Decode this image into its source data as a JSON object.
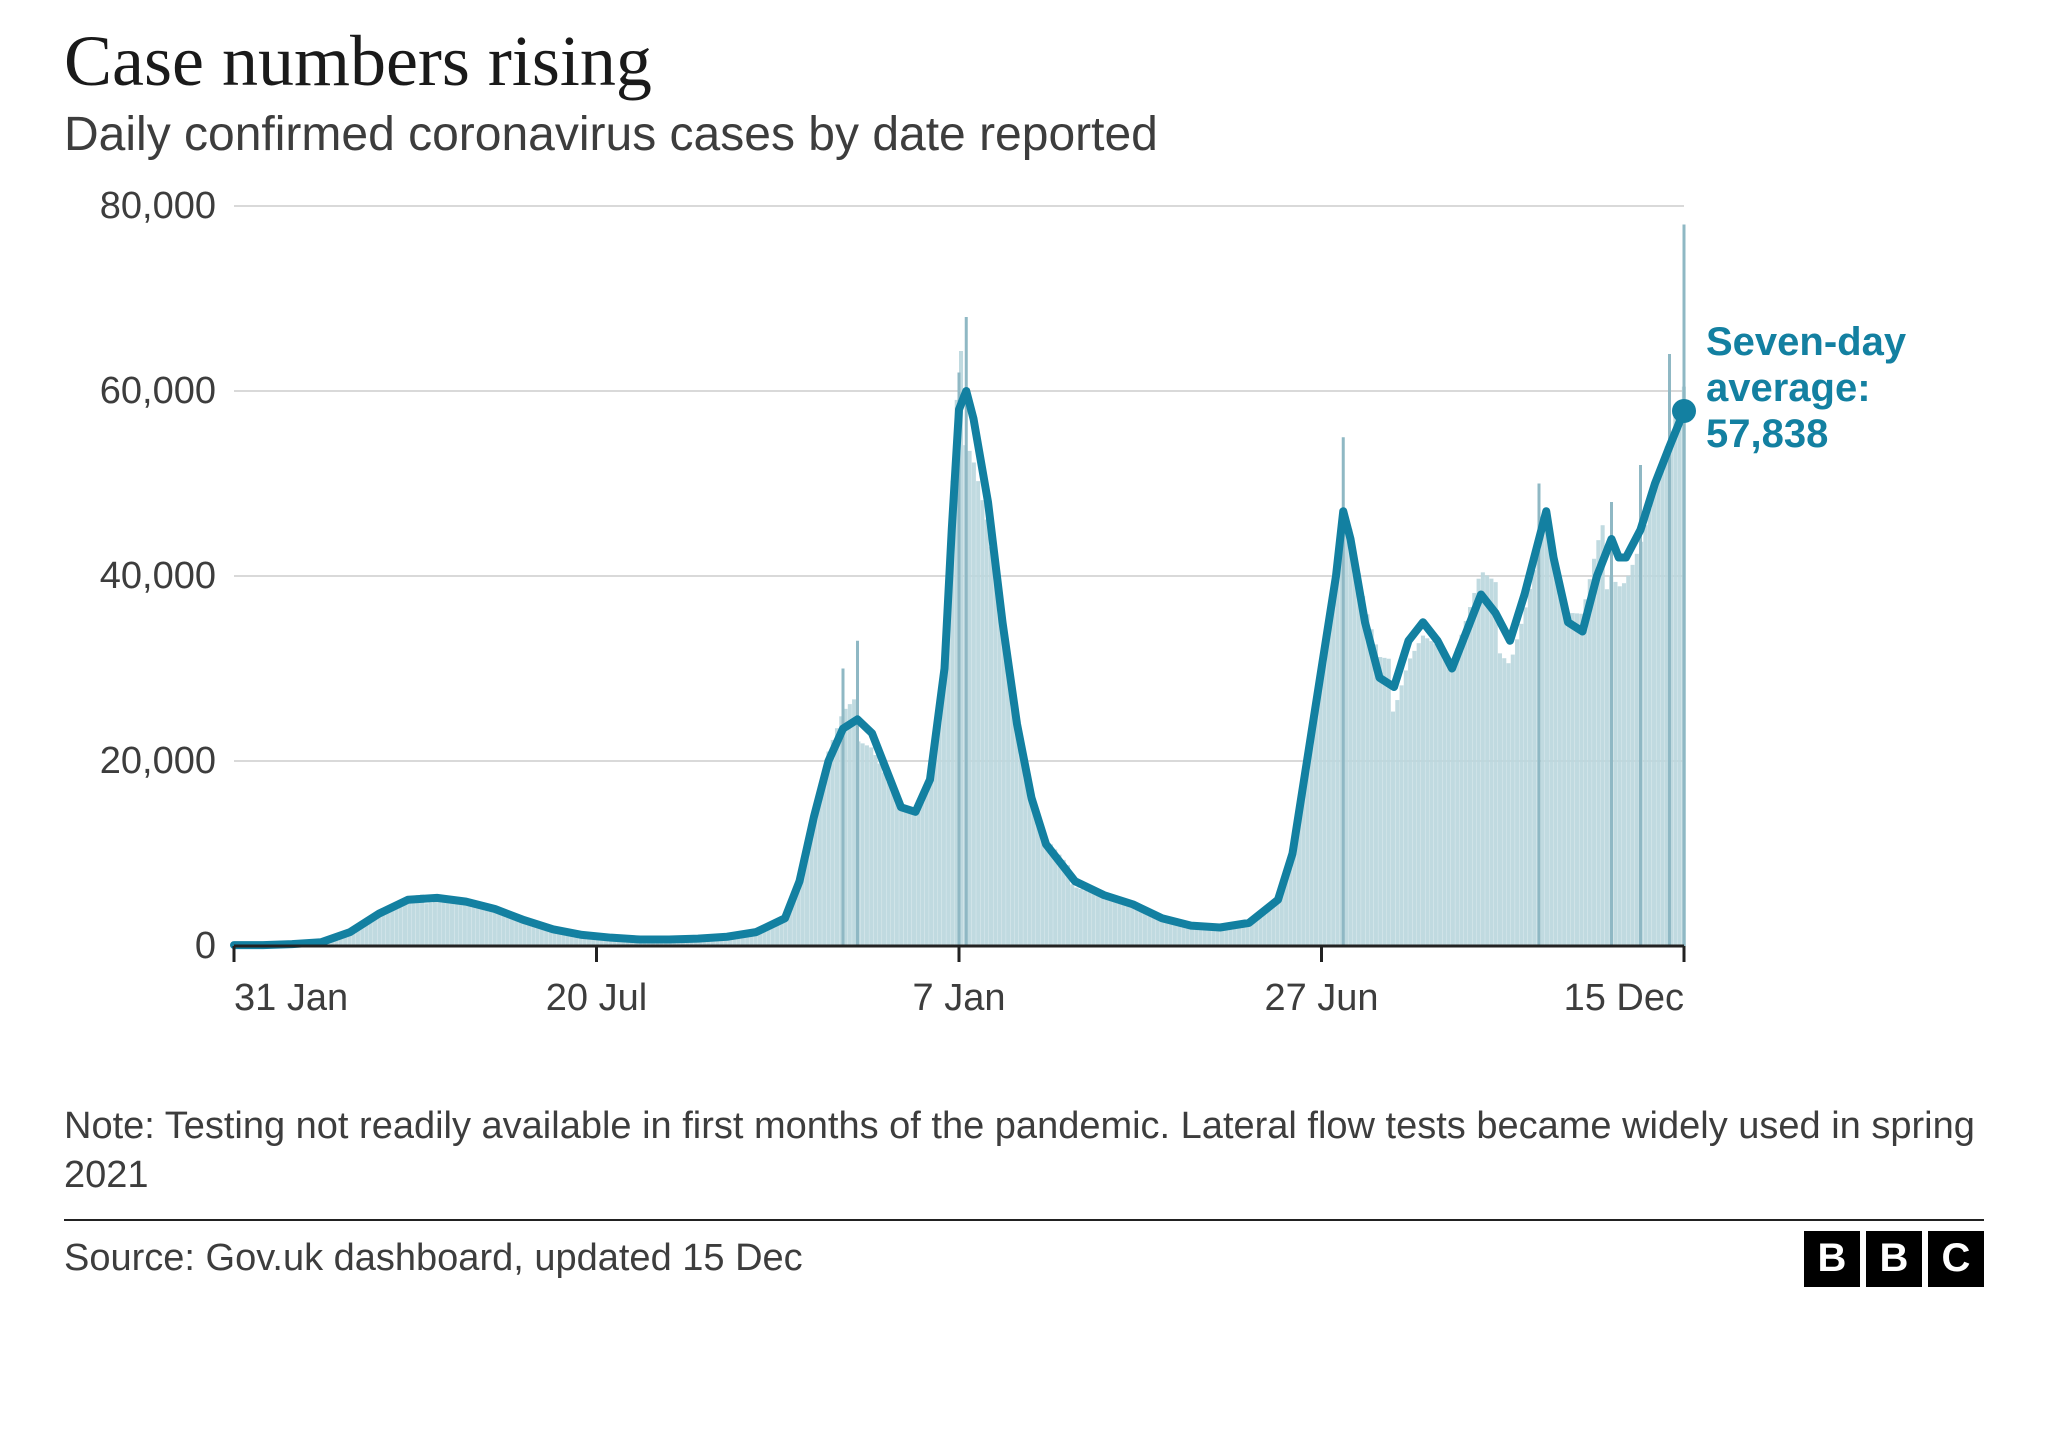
{
  "header": {
    "title": "Case numbers rising",
    "subtitle": "Daily confirmed coronavirus cases by date reported"
  },
  "chart": {
    "type": "area-line-with-bars",
    "background_color": "#ffffff",
    "grid_color": "#d9d9d9",
    "axis_color": "#222222",
    "axis_label_color": "#3d3d3d",
    "axis_fontsize": 38,
    "line_color": "#1380a1",
    "line_width": 8,
    "fill_color": "#b9d6dd",
    "fill_opacity": 0.9,
    "spike_color": "#8fb8c4",
    "marker_radius": 12,
    "y": {
      "min": 0,
      "max": 80000,
      "tick_step": 20000,
      "tick_labels": [
        "0",
        "20,000",
        "40,000",
        "60,000",
        "80,000"
      ]
    },
    "x": {
      "tick_positions": [
        0,
        0.25,
        0.5,
        0.75,
        1.0
      ],
      "tick_labels": [
        "31 Jan",
        "20 Jul",
        "7 Jan",
        "27 Jun",
        "15 Dec"
      ]
    },
    "series_avg": [
      [
        0.0,
        100
      ],
      [
        0.02,
        100
      ],
      [
        0.04,
        200
      ],
      [
        0.06,
        400
      ],
      [
        0.08,
        1500
      ],
      [
        0.1,
        3500
      ],
      [
        0.12,
        5000
      ],
      [
        0.14,
        5200
      ],
      [
        0.16,
        4800
      ],
      [
        0.18,
        4000
      ],
      [
        0.2,
        2800
      ],
      [
        0.22,
        1800
      ],
      [
        0.24,
        1200
      ],
      [
        0.26,
        900
      ],
      [
        0.28,
        700
      ],
      [
        0.3,
        700
      ],
      [
        0.32,
        800
      ],
      [
        0.34,
        1000
      ],
      [
        0.36,
        1500
      ],
      [
        0.38,
        3000
      ],
      [
        0.39,
        7000
      ],
      [
        0.4,
        14000
      ],
      [
        0.41,
        20000
      ],
      [
        0.42,
        23500
      ],
      [
        0.43,
        24500
      ],
      [
        0.44,
        23000
      ],
      [
        0.45,
        19000
      ],
      [
        0.46,
        15000
      ],
      [
        0.47,
        14500
      ],
      [
        0.48,
        18000
      ],
      [
        0.49,
        30000
      ],
      [
        0.495,
        45000
      ],
      [
        0.5,
        58000
      ],
      [
        0.505,
        60000
      ],
      [
        0.51,
        57000
      ],
      [
        0.52,
        48000
      ],
      [
        0.53,
        35000
      ],
      [
        0.54,
        24000
      ],
      [
        0.55,
        16000
      ],
      [
        0.56,
        11000
      ],
      [
        0.58,
        7000
      ],
      [
        0.6,
        5500
      ],
      [
        0.62,
        4500
      ],
      [
        0.64,
        3000
      ],
      [
        0.66,
        2200
      ],
      [
        0.68,
        2000
      ],
      [
        0.7,
        2500
      ],
      [
        0.72,
        5000
      ],
      [
        0.73,
        10000
      ],
      [
        0.74,
        20000
      ],
      [
        0.75,
        30000
      ],
      [
        0.76,
        40000
      ],
      [
        0.765,
        47000
      ],
      [
        0.77,
        44000
      ],
      [
        0.78,
        35000
      ],
      [
        0.79,
        29000
      ],
      [
        0.8,
        28000
      ],
      [
        0.81,
        33000
      ],
      [
        0.82,
        35000
      ],
      [
        0.83,
        33000
      ],
      [
        0.84,
        30000
      ],
      [
        0.85,
        34000
      ],
      [
        0.86,
        38000
      ],
      [
        0.87,
        36000
      ],
      [
        0.88,
        33000
      ],
      [
        0.89,
        38000
      ],
      [
        0.9,
        44000
      ],
      [
        0.905,
        47000
      ],
      [
        0.91,
        42000
      ],
      [
        0.92,
        35000
      ],
      [
        0.93,
        34000
      ],
      [
        0.94,
        40000
      ],
      [
        0.95,
        44000
      ],
      [
        0.955,
        42000
      ],
      [
        0.96,
        42000
      ],
      [
        0.97,
        45000
      ],
      [
        0.98,
        50000
      ],
      [
        0.99,
        54000
      ],
      [
        1.0,
        57838
      ]
    ],
    "daily_spikes": [
      [
        0.505,
        68000
      ],
      [
        0.5,
        62000
      ],
      [
        0.765,
        55000
      ],
      [
        0.99,
        64000
      ],
      [
        1.0,
        78000
      ],
      [
        0.42,
        30000
      ],
      [
        0.43,
        33000
      ],
      [
        0.9,
        50000
      ],
      [
        0.97,
        52000
      ],
      [
        0.95,
        48000
      ]
    ],
    "callout": {
      "line1": "Seven-day",
      "line2": "average:",
      "line3": "57,838",
      "value": 57838,
      "x": 1.0
    }
  },
  "note": "Note: Testing not readily available in first months of the pandemic. Lateral flow tests became widely used in spring 2021",
  "footer": {
    "source": "Source: Gov.uk dashboard, updated 15 Dec",
    "logo_letters": [
      "B",
      "B",
      "C"
    ]
  }
}
